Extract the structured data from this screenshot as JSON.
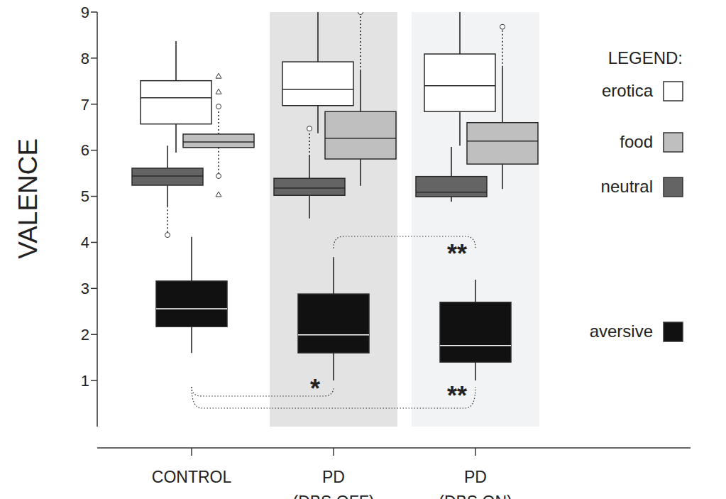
{
  "chart_data": {
    "type": "box",
    "y_label": "VALENCE",
    "categories": [
      "CONTROL",
      "PD\n(DBS OFF)",
      "PD\n(DBS ON)"
    ],
    "ylim": [
      0,
      9
    ],
    "yticks": [
      1,
      2,
      3,
      4,
      5,
      6,
      7,
      8,
      9
    ],
    "legend": "right",
    "legend_title": "LEGEND:",
    "series": [
      {
        "name": "erotica",
        "color": "#ffffff",
        "values": [
          {
            "whisker_low": 5.95,
            "q1": 6.57,
            "median": 7.14,
            "q3": 7.51,
            "whisker_high": 8.37
          },
          {
            "whisker_low": 6.37,
            "q1": 6.97,
            "median": 7.32,
            "q3": 7.92,
            "whisker_high": 9
          },
          {
            "whisker_low": 6.1,
            "q1": 6.84,
            "median": 7.4,
            "q3": 8.09,
            "whisker_high": 9
          }
        ]
      },
      {
        "name": "food",
        "color": "#bfbfbf",
        "values": [
          {
            "whisker_low": 6.06,
            "q1": 6.06,
            "median": 6.18,
            "q3": 6.35,
            "whisker_high": 6.35,
            "outliers": [
              6.95,
              5.44
            ],
            "extremes": [
              7.61,
              7.27,
              5.04
            ]
          },
          {
            "whisker_low": 5.23,
            "q1": 5.81,
            "median": 6.26,
            "q3": 6.84,
            "whisker_high": 7.72,
            "outliers": [
              9
            ]
          },
          {
            "whisker_low": 5.16,
            "q1": 5.7,
            "median": 6.2,
            "q3": 6.6,
            "whisker_high": 7.8,
            "outliers": [
              8.68
            ]
          }
        ]
      },
      {
        "name": "neutral",
        "color": "#646464",
        "values": [
          {
            "whisker_low": 4.79,
            "q1": 5.24,
            "median": 5.44,
            "q3": 5.61,
            "whisker_high": 6.1,
            "outliers": [
              4.16
            ]
          },
          {
            "whisker_low": 4.52,
            "q1": 5.02,
            "median": 5.18,
            "q3": 5.39,
            "whisker_high": 5.87,
            "outliers": [
              6.47
            ]
          },
          {
            "whisker_low": 4.88,
            "q1": 4.99,
            "median": 5.09,
            "q3": 5.43,
            "whisker_high": 6.07
          }
        ]
      },
      {
        "name": "aversive",
        "color": "#111111",
        "values": [
          {
            "whisker_low": 1.6,
            "q1": 2.17,
            "median": 2.56,
            "q3": 3.16,
            "whisker_high": 4.12
          },
          {
            "whisker_low": 1,
            "q1": 1.6,
            "median": 1.99,
            "q3": 2.88,
            "whisker_high": 3.68
          },
          {
            "whisker_low": 1,
            "q1": 1.4,
            "median": 1.76,
            "q3": 2.7,
            "whisker_high": 3.19
          }
        ]
      }
    ],
    "annotations": [
      {
        "between": [
          0,
          1
        ],
        "label": "*"
      },
      {
        "between": [
          0,
          2
        ],
        "label": "**"
      },
      {
        "between": [
          1,
          2
        ],
        "label": "**"
      }
    ]
  }
}
